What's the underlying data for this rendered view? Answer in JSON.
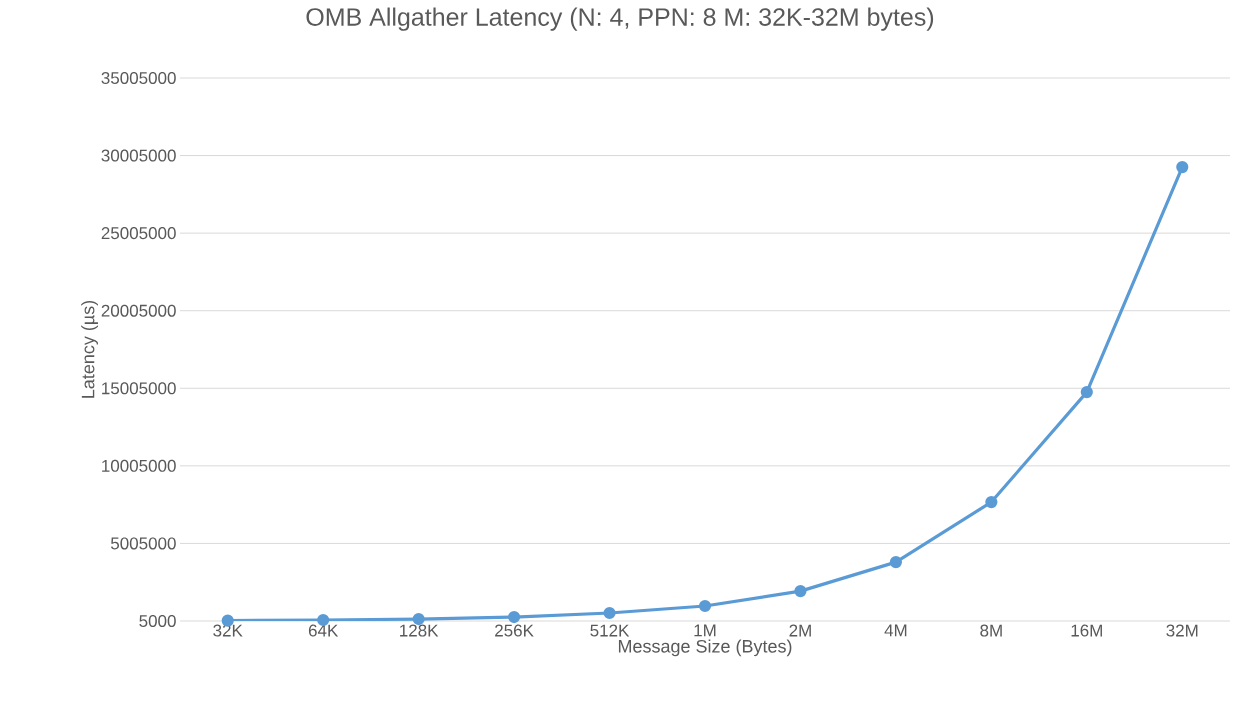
{
  "chart_data": {
    "type": "line",
    "title": "OMB Allgather Latency  (N: 4, PPN: 8 M: 32K-32M bytes)",
    "xlabel": "Message Size (Bytes)",
    "ylabel": "Latency (µs)",
    "categories": [
      "32K",
      "64K",
      "128K",
      "256K",
      "512K",
      "1M",
      "2M",
      "4M",
      "8M",
      "16M",
      "32M"
    ],
    "series": [
      {
        "color": "#5b9bd5",
        "values": [
          30000,
          70000,
          130000,
          260000,
          520000,
          970000,
          1930000,
          3800000,
          7670000,
          14760000,
          29260000
        ]
      }
    ],
    "ylim": [
      5000,
      35005000
    ],
    "yticks": [
      5000,
      5005000,
      10005000,
      15005000,
      20005000,
      25005000,
      30005000,
      35005000
    ],
    "grid": "y",
    "marker": "circle",
    "line_style": "solid"
  }
}
